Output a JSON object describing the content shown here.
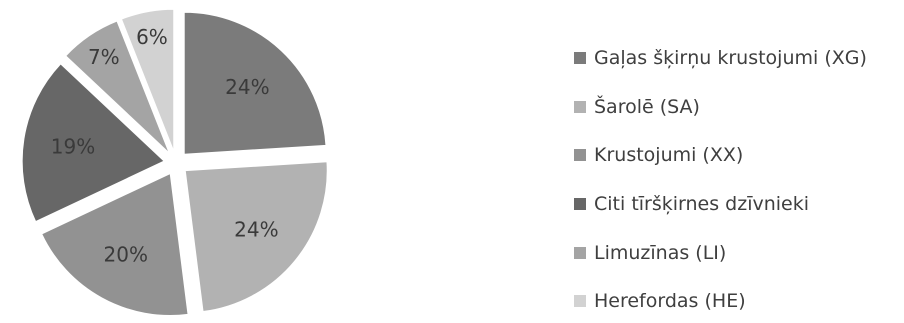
{
  "chart_data": {
    "type": "pie",
    "title": "",
    "legend_position": "right",
    "categories": [
      "Gaļas šķirņu krustojumi (XG)",
      "Šarolē (SA)",
      "Krustojumi (XX)",
      "Citi tīršķirnes dzīvnieki",
      "Limuzīnas (LI)",
      "Herefordas (HE)"
    ],
    "values": [
      24,
      24,
      20,
      19,
      7,
      6
    ],
    "value_labels": [
      "24%",
      "24%",
      "20%",
      "19%",
      "7%",
      "6%"
    ],
    "colors": [
      "#7b7b7b",
      "#b2b2b2",
      "#929292",
      "#676767",
      "#a4a4a4",
      "#d2d2d2"
    ],
    "exploded": true
  }
}
